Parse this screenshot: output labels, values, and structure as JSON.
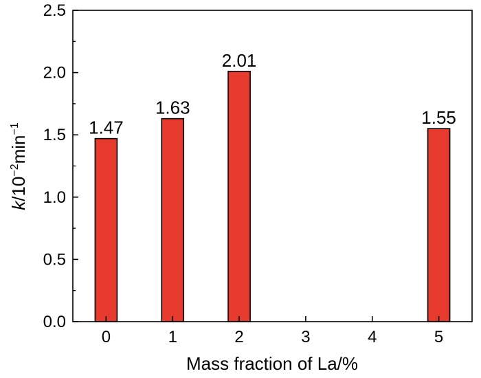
{
  "chart_data": {
    "type": "bar",
    "categories": [
      "0",
      "1",
      "2",
      "3",
      "4",
      "5"
    ],
    "x": [
      0,
      1,
      2,
      3,
      4,
      5
    ],
    "values": [
      1.47,
      1.63,
      2.01,
      null,
      null,
      1.55
    ],
    "data_labels": [
      "1.47",
      "1.63",
      "2.01",
      "",
      "",
      "1.55"
    ],
    "xlabel": "Mass fraction of La/%",
    "ylabel": {
      "italic": "k",
      "rest": "/10",
      "sup1": "−2",
      "unit": "min",
      "sup2": "−1"
    },
    "xlim": [
      -0.5,
      5.5
    ],
    "ylim": [
      0,
      2.5
    ],
    "x_ticks": [
      "0",
      "1",
      "2",
      "3",
      "4",
      "5"
    ],
    "y_ticks": [
      "0.0",
      "0.5",
      "1.0",
      "1.5",
      "2.0",
      "2.5"
    ],
    "bar_color": "#e63a2f",
    "bar_edge_color": "#000000",
    "grid": false,
    "legend": "none"
  }
}
